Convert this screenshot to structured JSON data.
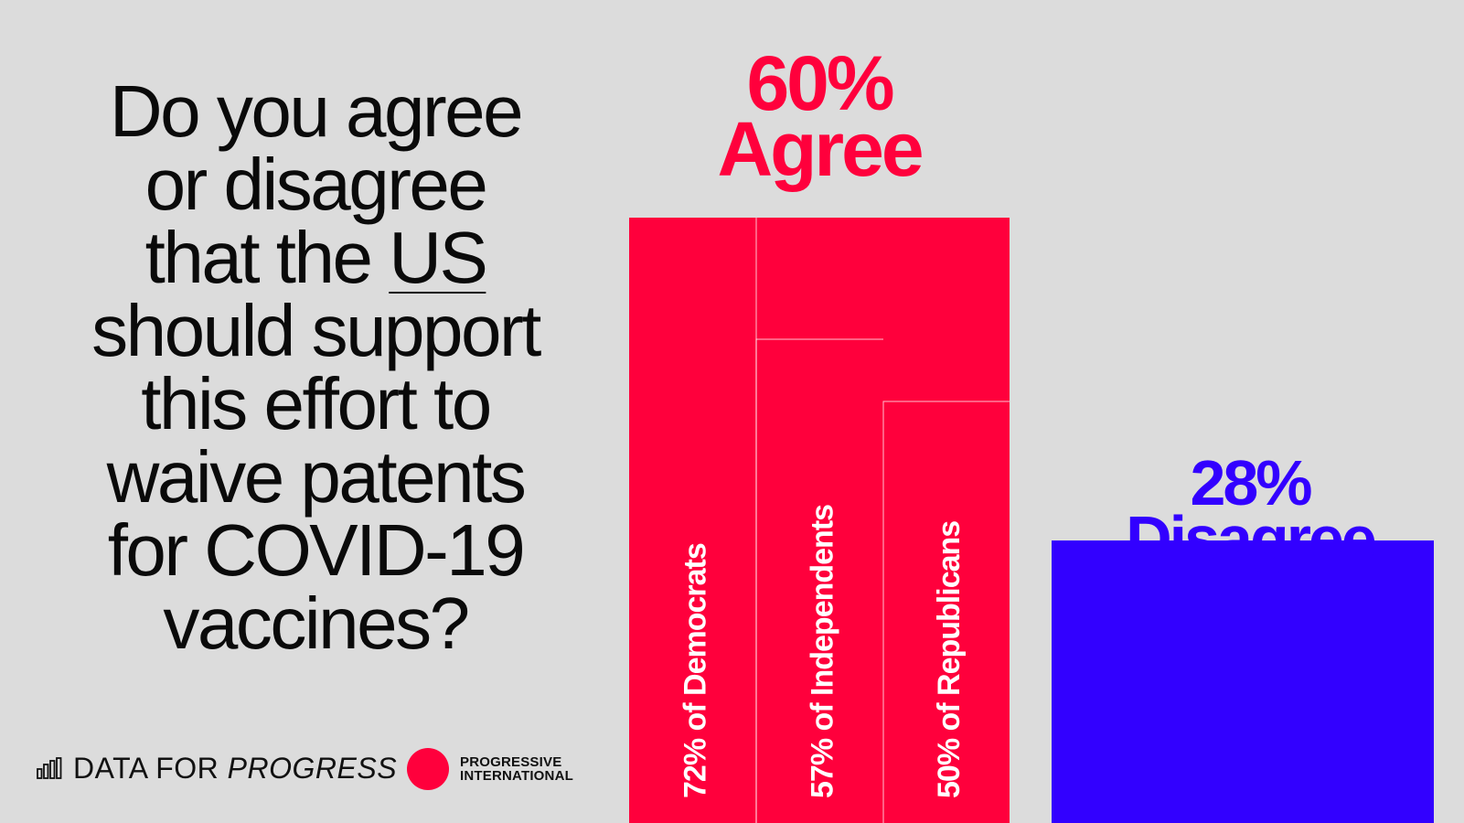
{
  "question": {
    "lines": [
      "Do you agree",
      "or disagree",
      "that the",
      "should support",
      "this effort to",
      "waive patents",
      "for COVID-19",
      "vaccines?"
    ],
    "underlined": "US"
  },
  "colors": {
    "agree": "#ff003c",
    "disagree": "#3200ff",
    "background": "#dcdcdc",
    "text": "#0a0a0a"
  },
  "chart_data": {
    "type": "bar",
    "title": "",
    "xlabel": "",
    "ylabel": "",
    "ylim": [
      0,
      60
    ],
    "categories": [
      "Agree",
      "Disagree"
    ],
    "values": [
      60,
      28
    ],
    "value_labels": [
      "60%",
      "28%"
    ],
    "subgroups": [
      {
        "label": "72% of Democrats",
        "value": 72
      },
      {
        "label": "57% of Independents",
        "value": 57
      },
      {
        "label": "50% of Republicans",
        "value": 50
      }
    ]
  },
  "footer": {
    "brand_plain": "DATA FOR",
    "brand_italic": "PROGRESS",
    "partner_line1": "PROGRESSIVE",
    "partner_line2": "INTERNATIONAL",
    "brand_icon": "bar-chart-icon",
    "partner_icon": "red-dot-icon"
  }
}
